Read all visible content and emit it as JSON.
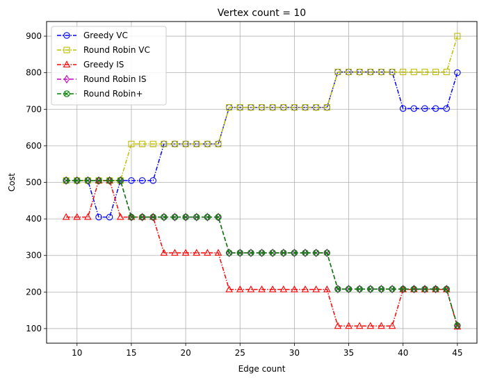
{
  "chart_data": {
    "type": "line",
    "title": "Vertex count = 10",
    "xlabel": "Edge count",
    "ylabel": "Cost",
    "xlim": [
      7.2,
      46.8
    ],
    "ylim": [
      60,
      940
    ],
    "xticks": [
      10,
      15,
      20,
      25,
      30,
      35,
      40,
      45
    ],
    "yticks": [
      100,
      200,
      300,
      400,
      500,
      600,
      700,
      800,
      900
    ],
    "grid": true,
    "legend_position": "top-left",
    "x": [
      9,
      10,
      11,
      12,
      13,
      14,
      15,
      16,
      17,
      18,
      19,
      20,
      21,
      22,
      23,
      24,
      25,
      26,
      27,
      28,
      29,
      30,
      31,
      32,
      33,
      34,
      35,
      36,
      37,
      38,
      39,
      40,
      41,
      42,
      43,
      44,
      45
    ],
    "series": [
      {
        "name": "Greedy VC",
        "color": "#0000ff",
        "marker": "circle",
        "values": [
          505,
          505,
          505,
          405,
          405,
          505,
          505,
          505,
          505,
          605,
          605,
          605,
          605,
          605,
          605,
          705,
          705,
          705,
          705,
          705,
          705,
          705,
          705,
          705,
          705,
          802,
          802,
          802,
          802,
          802,
          802,
          702,
          702,
          702,
          702,
          702,
          800
        ]
      },
      {
        "name": "Round Robin VC",
        "color": "#bfbf00",
        "marker": "square",
        "values": [
          505,
          505,
          505,
          505,
          505,
          505,
          605,
          605,
          605,
          605,
          605,
          605,
          605,
          605,
          605,
          705,
          705,
          705,
          705,
          705,
          705,
          705,
          705,
          705,
          705,
          802,
          802,
          802,
          802,
          802,
          802,
          802,
          802,
          802,
          802,
          802,
          900
        ]
      },
      {
        "name": "Greedy IS",
        "color": "#ff0000",
        "marker": "triangle",
        "values": [
          405,
          405,
          405,
          505,
          505,
          405,
          405,
          405,
          405,
          307,
          307,
          307,
          307,
          307,
          307,
          207,
          207,
          207,
          207,
          207,
          207,
          207,
          207,
          207,
          207,
          107,
          107,
          107,
          107,
          107,
          107,
          207,
          207,
          207,
          207,
          207,
          105
        ]
      },
      {
        "name": "Round Robin IS",
        "color": "#bf00bf",
        "marker": "diamond",
        "values": [
          505,
          505,
          505,
          505,
          505,
          505,
          405,
          405,
          405,
          405,
          405,
          405,
          405,
          405,
          405,
          307,
          307,
          307,
          307,
          307,
          307,
          307,
          307,
          307,
          307,
          208,
          208,
          208,
          208,
          208,
          208,
          208,
          208,
          208,
          208,
          208,
          108
        ]
      },
      {
        "name": "Round Robin+",
        "color": "#008000",
        "marker": "x-circle",
        "values": [
          505,
          505,
          505,
          505,
          505,
          505,
          405,
          405,
          405,
          405,
          405,
          405,
          405,
          405,
          405,
          307,
          307,
          307,
          307,
          307,
          307,
          307,
          307,
          307,
          307,
          208,
          208,
          208,
          208,
          208,
          208,
          208,
          208,
          208,
          208,
          208,
          108
        ]
      }
    ]
  }
}
